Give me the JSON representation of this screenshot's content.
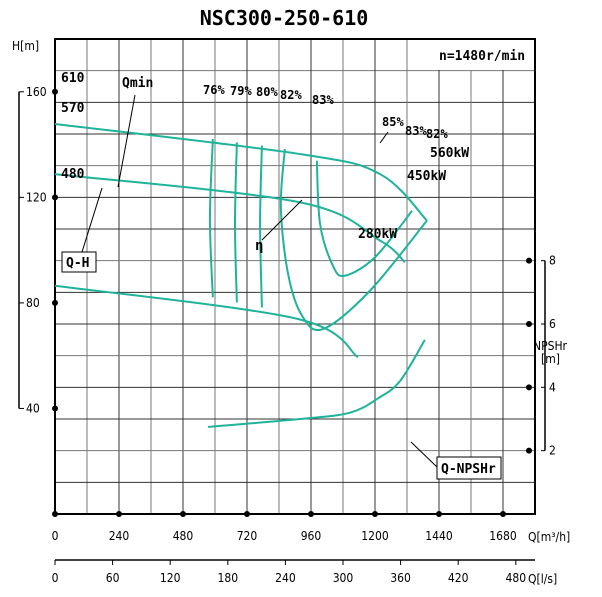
{
  "chart_data": {
    "type": "line",
    "title": "NSC300-250-610",
    "speed_label": "n=1480r/min",
    "x_axis": {
      "label": "Q[m³/h]",
      "range": [
        0,
        1800
      ],
      "ticks": [
        0,
        240,
        480,
        720,
        960,
        1200,
        1440,
        1680
      ]
    },
    "x2_axis": {
      "label": "Q[l/s]",
      "range": [
        0,
        500
      ],
      "ticks": [
        0,
        60,
        120,
        180,
        240,
        300,
        360,
        420,
        480
      ]
    },
    "y_axis": {
      "label": "H[m]",
      "range": [
        0,
        180
      ],
      "ticks": [
        160,
        120,
        80,
        40
      ]
    },
    "y2_axis": {
      "label_line1": "NPSHr",
      "label_line2": "[m]",
      "range": [
        0,
        15
      ],
      "ticks": [
        8,
        6,
        4,
        2
      ]
    },
    "grid": true,
    "head_curves": [
      {
        "name": "610",
        "points": [
          [
            0,
            147.8
          ],
          [
            919,
            136.4
          ],
          [
            1219,
            128.8
          ],
          [
            1395,
            111.2
          ]
        ]
      },
      {
        "name": "570",
        "points": [
          [
            0,
            128.8
          ],
          [
            919,
            118.1
          ],
          [
            1219,
            103.6
          ],
          [
            1312,
            95.4
          ]
        ]
      },
      {
        "name": "480",
        "points": [
          [
            0,
            86.5
          ],
          [
            907,
            74
          ],
          [
            1136,
            59.4
          ]
        ]
      }
    ],
    "efficiency_contours": [
      {
        "name": "76%",
        "points": [
          [
            592,
            142.1
          ],
          [
            581,
            111.8
          ],
          [
            592,
            82.1
          ]
        ]
      },
      {
        "name": "79%",
        "points": [
          [
            682,
            140.8
          ],
          [
            675,
            109.9
          ],
          [
            682,
            80.2
          ]
        ]
      },
      {
        "name": "80%",
        "points": [
          [
            776,
            139.6
          ],
          [
            769,
            109.9
          ],
          [
            776,
            78.3
          ]
        ]
      },
      {
        "name": "82%",
        "points": [
          [
            862,
            138.3
          ],
          [
            847,
            116.2
          ],
          [
            874,
            91
          ],
          [
            926,
            75.2
          ],
          [
            1005,
            70.1
          ],
          [
            1181,
            84.6
          ],
          [
            1395,
            111.2
          ]
        ]
      },
      {
        "name": "83%",
        "points": [
          [
            982,
            133.9
          ],
          [
            994,
            109.9
          ],
          [
            1042,
            94.1
          ],
          [
            1087,
            90.3
          ],
          [
            1200,
            97.3
          ],
          [
            1339,
            114.9
          ]
        ]
      }
    ],
    "efficiency_labels": [
      "76%",
      "79%",
      "80%",
      "82%",
      "83%",
      "85%",
      "83%",
      "82%"
    ],
    "power_labels": [
      "560kW",
      "450kW",
      "280kW"
    ],
    "npshr_curve": {
      "name": "Q-NPSHr",
      "points": [
        [
          574,
          2.75
        ],
        [
          919,
          3.0
        ],
        [
          1106,
          3.2
        ],
        [
          1211,
          3.65
        ],
        [
          1294,
          4.2
        ],
        [
          1387,
          5.5
        ]
      ]
    },
    "annotations": {
      "qmin": "Qmin",
      "eta": "η",
      "qh": "Q-H",
      "qnpsh": "Q-NPSHr"
    },
    "colors": {
      "curve": "#1fb39a",
      "grid": "#333333"
    }
  }
}
